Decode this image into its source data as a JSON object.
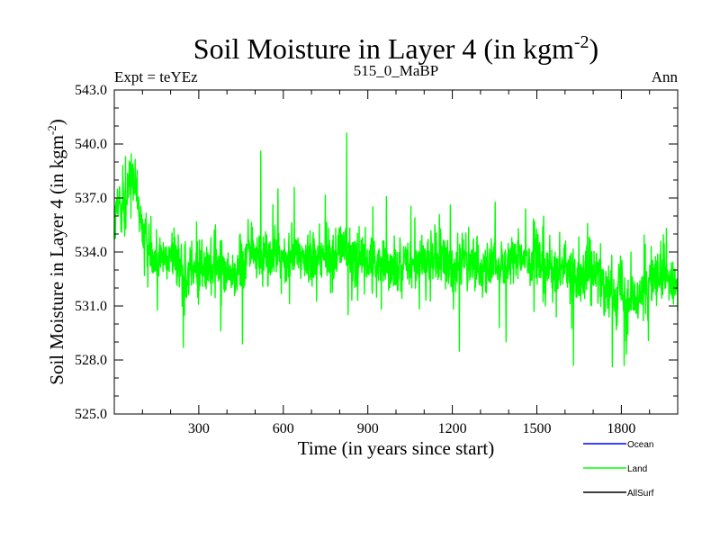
{
  "chart_data": {
    "type": "line",
    "title": "Soil Moisture in Layer 4 (in kgm",
    "title_superscript": "-2",
    "title_close": ")",
    "subtitle_left": "Expt = teYEz",
    "subtitle_center": "515_0_MaBP",
    "subtitle_right": "Ann",
    "xlabel": "Time (in years since start)",
    "ylabel": "Soil Moisture in Layer 4 (in kgm",
    "ylabel_superscript": "-2",
    "ylabel_close": ")",
    "xlim": [
      0,
      2000
    ],
    "ylim": [
      525.0,
      543.0
    ],
    "xticks": [
      300,
      600,
      900,
      1200,
      1500,
      1800
    ],
    "xtick_labels": [
      "300",
      "600",
      "900",
      "1200",
      "1500",
      "1800"
    ],
    "yticks": [
      525.0,
      528.0,
      531.0,
      534.0,
      537.0,
      540.0,
      543.0
    ],
    "ytick_labels": [
      "525.0",
      "528.0",
      "531.0",
      "534.0",
      "537.0",
      "540.0",
      "543.0"
    ],
    "legend_position": "bottom-right",
    "legend": [
      {
        "name": "Ocean",
        "color": "#0000ff"
      },
      {
        "name": "Land",
        "color": "#00ff00"
      },
      {
        "name": "AllSurf",
        "color": "#000000"
      }
    ],
    "series": [
      {
        "name": "Land",
        "color": "#00ff00",
        "x_start": 0,
        "x_step": 20,
        "values": [
          535.5,
          537.0,
          536.2,
          538.6,
          536.8,
          535.3,
          534.5,
          534.0,
          533.8,
          533.6,
          533.9,
          533.5,
          532.7,
          532.6,
          533.0,
          533.2,
          532.9,
          532.9,
          533.5,
          533.2,
          532.7,
          532.8,
          533.1,
          533.4,
          534.4,
          533.8,
          533.6,
          533.8,
          533.6,
          533.8,
          533.5,
          533.6,
          533.9,
          533.8,
          533.6,
          533.9,
          533.5,
          533.8,
          533.9,
          533.7,
          534.1,
          534.3,
          533.8,
          533.6,
          533.5,
          533.4,
          533.5,
          533.4,
          533.7,
          533.2,
          533.0,
          533.1,
          533.3,
          533.2,
          533.5,
          533.4,
          533.3,
          533.8,
          533.6,
          533.2,
          533.0,
          533.3,
          533.5,
          533.2,
          533.4,
          533.3,
          533.0,
          533.2,
          533.3,
          533.1,
          533.4,
          533.5,
          533.5,
          533.8,
          533.3,
          533.6,
          533.4,
          533.0,
          532.7,
          533.1,
          533.3,
          532.8,
          533.0,
          532.6,
          532.9,
          532.5,
          532.6,
          532.1,
          531.8,
          531.6,
          532.5,
          531.4,
          531.2,
          531.8,
          531.7,
          532.2,
          532.5,
          532.4,
          532.6,
          532.1
        ]
      }
    ],
    "series_maxima": {
      "x": [
        30,
        40,
        520,
        825
      ],
      "y": [
        538.8,
        539.3,
        539.6,
        540.6
      ]
    },
    "series_minima": {
      "x": [
        245,
        455,
        1225,
        1630,
        1810
      ],
      "y": [
        528.7,
        528.9,
        528.5,
        527.7,
        527.7
      ]
    }
  }
}
